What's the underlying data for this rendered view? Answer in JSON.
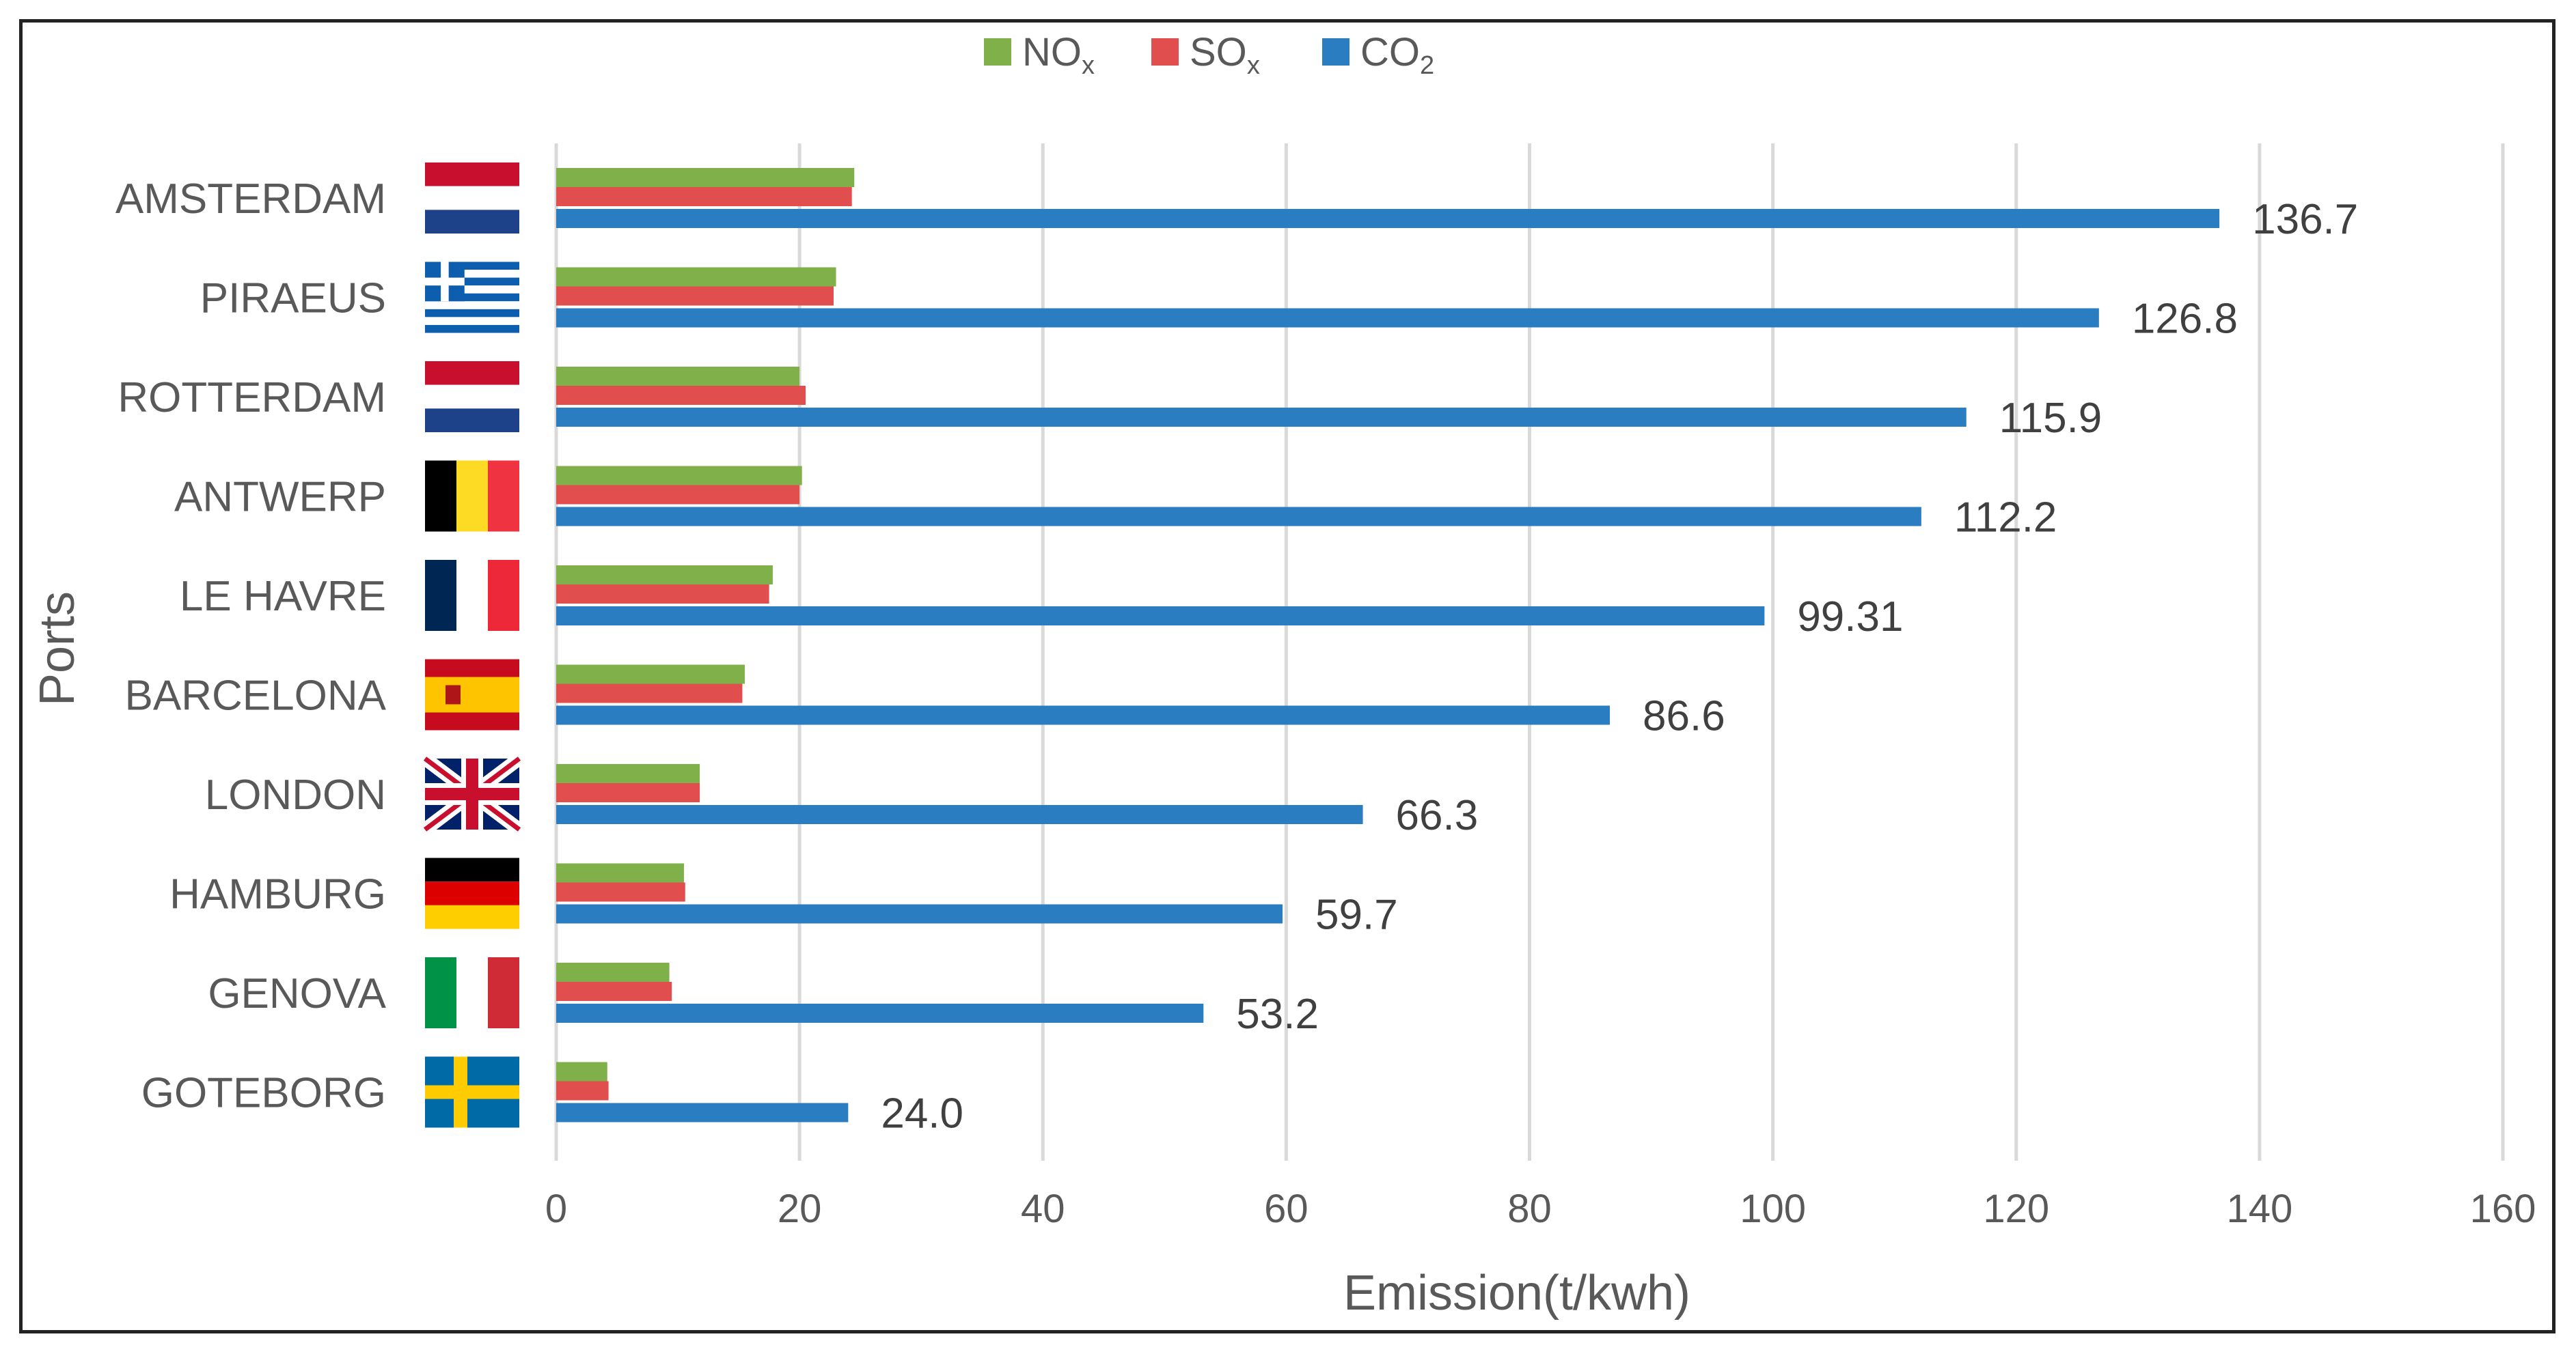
{
  "chart_data": {
    "type": "bar",
    "orientation": "horizontal",
    "title": "",
    "xlabel": "Emission(t/kwh)",
    "ylabel": "Ports",
    "xlim": [
      0,
      160
    ],
    "xticks": [
      0,
      20,
      40,
      60,
      80,
      100,
      120,
      140,
      160
    ],
    "grid": "vertical",
    "legend_position": "top-center",
    "categories": [
      "AMSTERDAM",
      "PIRAEUS",
      "ROTTERDAM",
      "ANTWERP",
      "LE HAVRE",
      "BARCELONA",
      "LONDON",
      "HAMBURG",
      "GENOVA",
      "GOTEBORG"
    ],
    "series": [
      {
        "name": "NOx",
        "color": "#7fb04a",
        "values": [
          24.5,
          23.0,
          20.0,
          20.2,
          17.8,
          15.5,
          11.8,
          10.5,
          9.3,
          4.2
        ]
      },
      {
        "name": "SOx",
        "color": "#e04e4e",
        "values": [
          24.3,
          22.8,
          20.5,
          20.0,
          17.5,
          15.3,
          11.8,
          10.6,
          9.5,
          4.3
        ]
      },
      {
        "name": "CO2",
        "color": "#2a7dc1",
        "values": [
          136.7,
          126.8,
          115.9,
          112.2,
          99.31,
          86.6,
          66.3,
          59.7,
          53.2,
          24.0
        ]
      }
    ],
    "data_labels": [
      "136.7",
      "126.8",
      "115.9",
      "112.2",
      "99.31",
      "86.6",
      "66.3",
      "59.7",
      "53.2",
      "24.0"
    ],
    "legend": [
      {
        "main": "NO",
        "sub": "x"
      },
      {
        "main": "SO",
        "sub": "x"
      },
      {
        "main": "CO",
        "sub": "2"
      }
    ],
    "flags": [
      "netherlands-flag",
      "greece-flag",
      "netherlands-flag",
      "belgium-flag",
      "france-flag",
      "spain-flag",
      "uk-flag",
      "germany-flag",
      "italy-flag",
      "sweden-flag"
    ]
  }
}
